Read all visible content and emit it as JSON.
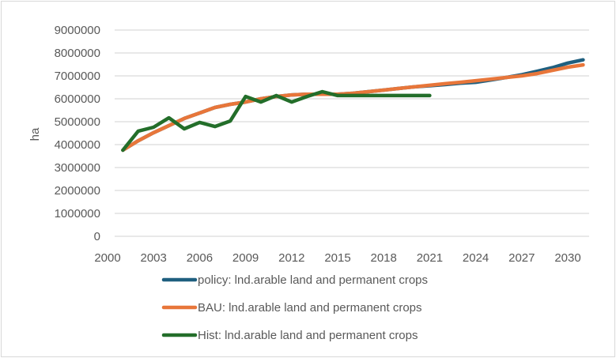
{
  "chart_data": {
    "type": "line",
    "title": "",
    "xlabel": "",
    "ylabel": "ha",
    "ylim": [
      0,
      9000000
    ],
    "yticks": [
      "0",
      "1000000",
      "2000000",
      "3000000",
      "4000000",
      "5000000",
      "6000000",
      "7000000",
      "8000000",
      "9000000"
    ],
    "xlim": [
      2000,
      2031
    ],
    "xticks": [
      "2000",
      "2003",
      "2006",
      "2009",
      "2012",
      "2015",
      "2018",
      "2021",
      "2024",
      "2027",
      "2030"
    ],
    "grid": true,
    "legend_position": "bottom",
    "series": [
      {
        "name": "policy: lnd.arable land and permanent crops",
        "color": "#1f5f7f",
        "x": [
          2001,
          2002,
          2003,
          2004,
          2005,
          2006,
          2007,
          2008,
          2009,
          2010,
          2011,
          2012,
          2013,
          2014,
          2015,
          2016,
          2017,
          2018,
          2019,
          2020,
          2021,
          2022,
          2023,
          2024,
          2025,
          2026,
          2027,
          2028,
          2029,
          2030,
          2031
        ],
        "values": [
          3760000,
          4170000,
          4520000,
          4830000,
          5140000,
          5380000,
          5620000,
          5760000,
          5860000,
          6000000,
          6100000,
          6170000,
          6200000,
          6200000,
          6200000,
          6240000,
          6310000,
          6380000,
          6450000,
          6520000,
          6570000,
          6620000,
          6680000,
          6720000,
          6820000,
          6930000,
          7050000,
          7200000,
          7360000,
          7560000,
          7700000
        ]
      },
      {
        "name": "BAU: lnd.arable land and permanent crops",
        "color": "#e8763a",
        "x": [
          2001,
          2002,
          2003,
          2004,
          2005,
          2006,
          2007,
          2008,
          2009,
          2010,
          2011,
          2012,
          2013,
          2014,
          2015,
          2016,
          2017,
          2018,
          2019,
          2020,
          2021,
          2022,
          2023,
          2024,
          2025,
          2026,
          2027,
          2028,
          2029,
          2030,
          2031
        ],
        "values": [
          3760000,
          4170000,
          4520000,
          4830000,
          5140000,
          5380000,
          5620000,
          5760000,
          5860000,
          6000000,
          6100000,
          6170000,
          6200000,
          6200000,
          6200000,
          6240000,
          6310000,
          6380000,
          6450000,
          6520000,
          6590000,
          6660000,
          6720000,
          6790000,
          6860000,
          6930000,
          7000000,
          7100000,
          7240000,
          7380000,
          7480000
        ]
      },
      {
        "name": "Hist: lnd.arable land and permanent crops",
        "color": "#236e2a",
        "x": [
          2001,
          2002,
          2003,
          2004,
          2005,
          2006,
          2007,
          2008,
          2009,
          2010,
          2011,
          2012,
          2013,
          2014,
          2015,
          2016,
          2017,
          2018,
          2019,
          2020,
          2021
        ],
        "values": [
          3760000,
          4590000,
          4760000,
          5170000,
          4690000,
          4970000,
          4790000,
          5030000,
          6100000,
          5860000,
          6140000,
          5860000,
          6100000,
          6310000,
          6140000,
          6140000,
          6140000,
          6140000,
          6140000,
          6140000,
          6140000
        ]
      }
    ]
  }
}
